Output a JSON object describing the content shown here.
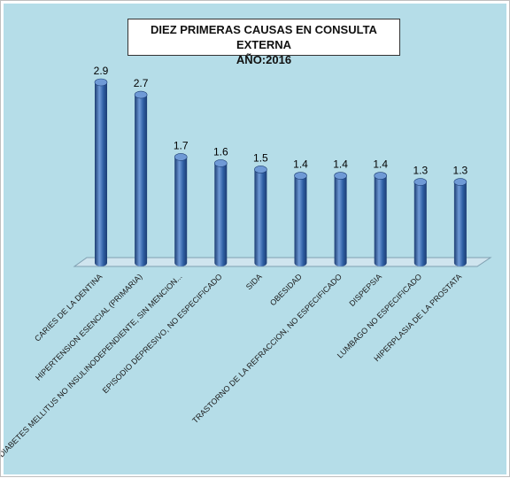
{
  "chart_data": {
    "type": "bar",
    "title": "DIEZ PRIMERAS CAUSAS EN CONSULTA EXTERNA",
    "subtitle": "AÑO:2016",
    "categories": [
      "CARIES DE LA DENTINA",
      "HIPERTENSION ESENCIAL (PRIMARIA)",
      "DIABETES MELLITUS NO INSULINODEPENDIENTE, SIN MENCION...",
      "EPISODIO DEPRESIVO, NO ESPECIFICADO",
      "SIDA",
      "OBESIDAD",
      "TRASTORNO DE LA REFRACCION, NO ESPECIFICADO",
      "DISPEPSIA",
      "LUMBAGO NO ESPECIFICADO",
      "HIPERPLASIA DE LA PROSTATA"
    ],
    "values": [
      2.9,
      2.7,
      1.7,
      1.6,
      1.5,
      1.4,
      1.4,
      1.4,
      1.3,
      1.3
    ],
    "data_labels": [
      "2.9",
      "2.7",
      "1.7",
      "1.6",
      "1.5",
      "1.4",
      "1.4",
      "1.4",
      "1.3",
      "1.3"
    ],
    "xlabel": "",
    "ylabel": "",
    "ylim": [
      0,
      2.9
    ],
    "grid": false,
    "bar_style": "3d-cylinder",
    "colors": {
      "bar": "#2e5ea3",
      "bar_dark": "#1c3d73",
      "bar_light": "#6f9ad6",
      "background": "#b5dde8",
      "floor": "#cfe4ee"
    }
  }
}
